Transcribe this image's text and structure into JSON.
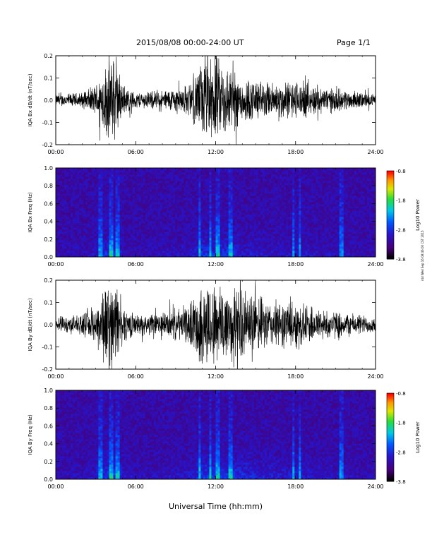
{
  "header": {
    "title": "2015/08/08   00:00-24:00 UT",
    "page": "Page 1/1",
    "stamp": "rdd Wed Sep 16 08:46:00 CST 2015"
  },
  "chart_data": [
    {
      "type": "line",
      "ylabel": "IQA Bx dB/dt (nT/sec)",
      "xticks": [
        "00:00",
        "06:00",
        "12:00",
        "18:00",
        "24:00"
      ],
      "xlim": [
        0,
        24
      ],
      "ylim": [
        -0.2,
        0.2
      ],
      "yticks": [
        "0.2",
        "0.1",
        "0.0",
        "-0.1",
        "-0.2"
      ],
      "series": [
        {
          "x": [
            0,
            2,
            3,
            3.5,
            4,
            4.5,
            5,
            6,
            8,
            10,
            11,
            12,
            13,
            14,
            16,
            18,
            20,
            22,
            24
          ],
          "amplitude": [
            0.03,
            0.04,
            0.08,
            0.15,
            0.22,
            0.22,
            0.08,
            0.04,
            0.05,
            0.08,
            0.2,
            0.22,
            0.18,
            0.12,
            0.09,
            0.1,
            0.07,
            0.05,
            0.03
          ]
        }
      ]
    },
    {
      "type": "heatmap",
      "ylabel": "IQA Bx Freq (Hz)",
      "xticks": [
        "00:00",
        "06:00",
        "12:00",
        "18:00",
        "24:00"
      ],
      "xlim": [
        0,
        24
      ],
      "ylim": [
        0,
        1.0
      ],
      "yticks": [
        "1.0",
        "0.8",
        "0.6",
        "0.4",
        "0.2",
        "0.0"
      ],
      "colorbar": {
        "label": "Log10 Power",
        "ticks": [
          "-0.8",
          "-1.8",
          "-2.8",
          "-3.8"
        ],
        "range": [
          -3.8,
          -0.8
        ]
      }
    },
    {
      "type": "line",
      "ylabel": "IQA By dB/dt (nT/sec)",
      "xticks": [
        "00:00",
        "06:00",
        "12:00",
        "18:00",
        "24:00"
      ],
      "xlim": [
        0,
        24
      ],
      "ylim": [
        -0.2,
        0.2
      ],
      "yticks": [
        "0.2",
        "0.1",
        "0.0",
        "-0.1",
        "-0.2"
      ],
      "series": [
        {
          "x": [
            0,
            2,
            3,
            3.5,
            4,
            4.5,
            5,
            6,
            8,
            10,
            11,
            12,
            13,
            14,
            16,
            18,
            20,
            22,
            24
          ],
          "amplitude": [
            0.04,
            0.05,
            0.1,
            0.2,
            0.22,
            0.22,
            0.1,
            0.05,
            0.06,
            0.1,
            0.22,
            0.22,
            0.22,
            0.18,
            0.12,
            0.12,
            0.08,
            0.06,
            0.04
          ]
        }
      ]
    },
    {
      "type": "heatmap",
      "ylabel": "IQA By Freq (Hz)",
      "xticks": [
        "00:00",
        "06:00",
        "12:00",
        "18:00",
        "24:00"
      ],
      "xlim": [
        0,
        24
      ],
      "ylim": [
        0,
        1.0
      ],
      "yticks": [
        "1.0",
        "0.8",
        "0.6",
        "0.4",
        "0.2",
        "0.0"
      ],
      "colorbar": {
        "label": "Log10 Power",
        "ticks": [
          "-0.8",
          "-1.8",
          "-2.8",
          "-3.8"
        ],
        "range": [
          -3.8,
          -0.8
        ]
      }
    }
  ],
  "xlabel": "Universal Time (hh:mm)"
}
